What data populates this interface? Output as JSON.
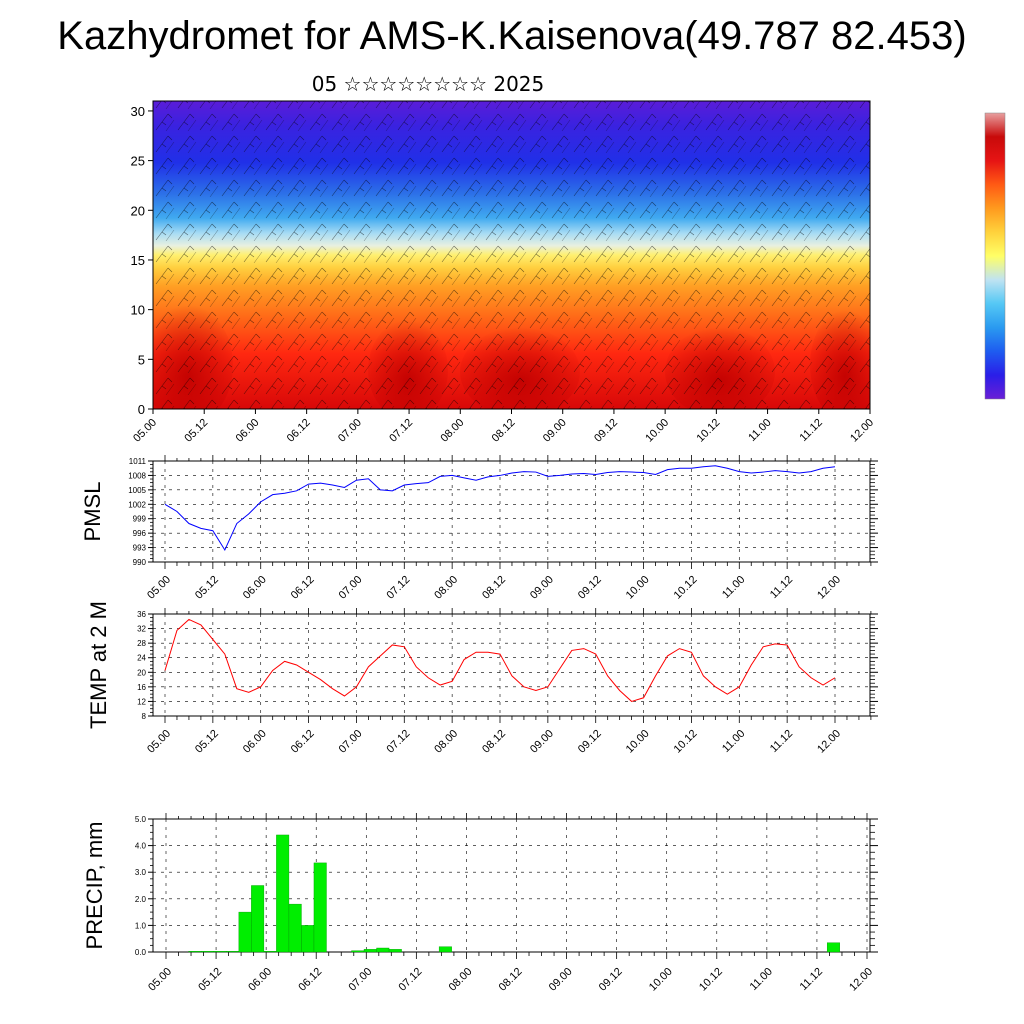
{
  "title": "Kazhydromet for AMS-K.Kaisenova(49.787 82.453)",
  "subtitle": "05 ☆☆☆☆☆☆☆☆ 2025",
  "time_labels": [
    "05.00",
    "05.12",
    "06.00",
    "06.12",
    "07.00",
    "07.12",
    "08.00",
    "08.12",
    "09.00",
    "09.12",
    "10.00",
    "10.12",
    "11.00",
    "11.12",
    "12.00"
  ],
  "colorbar": {
    "stops": [
      "#6a1fd6",
      "#2a1ee8",
      "#1e5cf0",
      "#2a9af0",
      "#55c8f5",
      "#bfe3f2",
      "#ffff66",
      "#ffd23c",
      "#ff9a1e",
      "#ff5a14",
      "#e61414",
      "#c80a0a",
      "#e8a0a0"
    ]
  },
  "chart_data": [
    {
      "type": "heatmap",
      "name": "vertical-profile",
      "xlabel": "",
      "ylabel": "",
      "yticks": [
        0,
        5,
        10,
        15,
        20,
        25,
        30
      ],
      "ylim": [
        0,
        31
      ],
      "xticks": [
        "05.00",
        "05.12",
        "06.00",
        "06.12",
        "07.00",
        "07.12",
        "08.00",
        "08.12",
        "09.00",
        "09.12",
        "10.00",
        "10.12",
        "11.00",
        "11.12",
        "12.00"
      ],
      "description_colors": "warm near surface (red/orange up to ~13), yellow ~15-16, cyan/blue ~18-22, deep blue/violet above 25",
      "wind_barbs": true
    },
    {
      "type": "line",
      "name": "PMSL",
      "ylabel": "PMSL",
      "ylim": [
        990,
        1011
      ],
      "yticks": [
        990,
        993,
        996,
        999,
        1002,
        1005,
        1008,
        1011
      ],
      "color": "#0000ff",
      "x": [
        0,
        1,
        2,
        3,
        4,
        5,
        6,
        7,
        8,
        9,
        10,
        11,
        12,
        13,
        14,
        15,
        16,
        17,
        18,
        19,
        20,
        21,
        22,
        23,
        24,
        25,
        26,
        27,
        28,
        29,
        30,
        31,
        32,
        33,
        34,
        35,
        36,
        37,
        38,
        39,
        40,
        41,
        42,
        43,
        44,
        45,
        46,
        47,
        48,
        49,
        50,
        51,
        52,
        53,
        54,
        55,
        56
      ],
      "values": [
        1002,
        1000.5,
        998,
        997,
        996.5,
        992.5,
        998,
        1000,
        1002.5,
        1004,
        1004.3,
        1004.8,
        1006.2,
        1006.4,
        1006,
        1005.5,
        1007,
        1007.3,
        1005,
        1004.8,
        1006,
        1006.3,
        1006.5,
        1007.8,
        1008,
        1007.5,
        1007,
        1007.7,
        1008,
        1008.5,
        1008.8,
        1008.7,
        1007.8,
        1008,
        1008.3,
        1008.4,
        1008.2,
        1008.6,
        1008.8,
        1008.7,
        1008.6,
        1008.2,
        1009.2,
        1009.5,
        1009.5,
        1009.8,
        1010,
        1009.5,
        1008.8,
        1008.5,
        1008.7,
        1009,
        1008.8,
        1008.5,
        1008.8,
        1009.5,
        1009.8
      ]
    },
    {
      "type": "line",
      "name": "TEMP at 2 M",
      "ylabel": "TEMP at 2 M",
      "ylim": [
        8,
        36
      ],
      "yticks": [
        8,
        12,
        16,
        20,
        24,
        28,
        32,
        36
      ],
      "color": "#ff0000",
      "x": [
        0,
        1,
        2,
        3,
        4,
        5,
        6,
        7,
        8,
        9,
        10,
        11,
        12,
        13,
        14,
        15,
        16,
        17,
        18,
        19,
        20,
        21,
        22,
        23,
        24,
        25,
        26,
        27,
        28,
        29,
        30,
        31,
        32,
        33,
        34,
        35,
        36,
        37,
        38,
        39,
        40,
        41,
        42,
        43,
        44,
        45,
        46,
        47,
        48,
        49,
        50,
        51,
        52,
        53,
        54,
        55,
        56
      ],
      "values": [
        20.5,
        31.5,
        34.5,
        33,
        29,
        25,
        15.5,
        14.5,
        16,
        20.5,
        23,
        22,
        20,
        18,
        15.5,
        13.5,
        16,
        21.5,
        24.5,
        27.5,
        27,
        21.5,
        18.5,
        16.5,
        17.5,
        23.5,
        25.5,
        25.5,
        25,
        19,
        16,
        15,
        16,
        21,
        26,
        26.5,
        25,
        19,
        15,
        12,
        13,
        19,
        24.5,
        26.5,
        25.5,
        19,
        16,
        14,
        16,
        22,
        27,
        27.8,
        27.5,
        21.5,
        18.5,
        16.5,
        18.5
      ]
    },
    {
      "type": "bar",
      "name": "PRECIP, mm",
      "ylabel": "PRECIP, mm",
      "ylim": [
        0,
        5
      ],
      "yticks": [
        "0.0",
        "1.0",
        "2.0",
        "3.0",
        "4.0",
        "5.0"
      ],
      "color": "#00ee00",
      "bars": [
        {
          "x": 2,
          "value": 0.03
        },
        {
          "x": 3,
          "value": 0.03
        },
        {
          "x": 4,
          "value": 0.03
        },
        {
          "x": 5,
          "value": 0.03
        },
        {
          "x": 6,
          "value": 1.5
        },
        {
          "x": 7,
          "value": 2.5
        },
        {
          "x": 8,
          "value": 0.03
        },
        {
          "x": 9,
          "value": 4.4
        },
        {
          "x": 10,
          "value": 1.8
        },
        {
          "x": 11,
          "value": 1.0
        },
        {
          "x": 12,
          "value": 3.35
        },
        {
          "x": 15,
          "value": 0.05
        },
        {
          "x": 16,
          "value": 0.1
        },
        {
          "x": 17,
          "value": 0.15
        },
        {
          "x": 18,
          "value": 0.1
        },
        {
          "x": 22,
          "value": 0.2
        },
        {
          "x": 53,
          "value": 0.35
        }
      ]
    }
  ]
}
